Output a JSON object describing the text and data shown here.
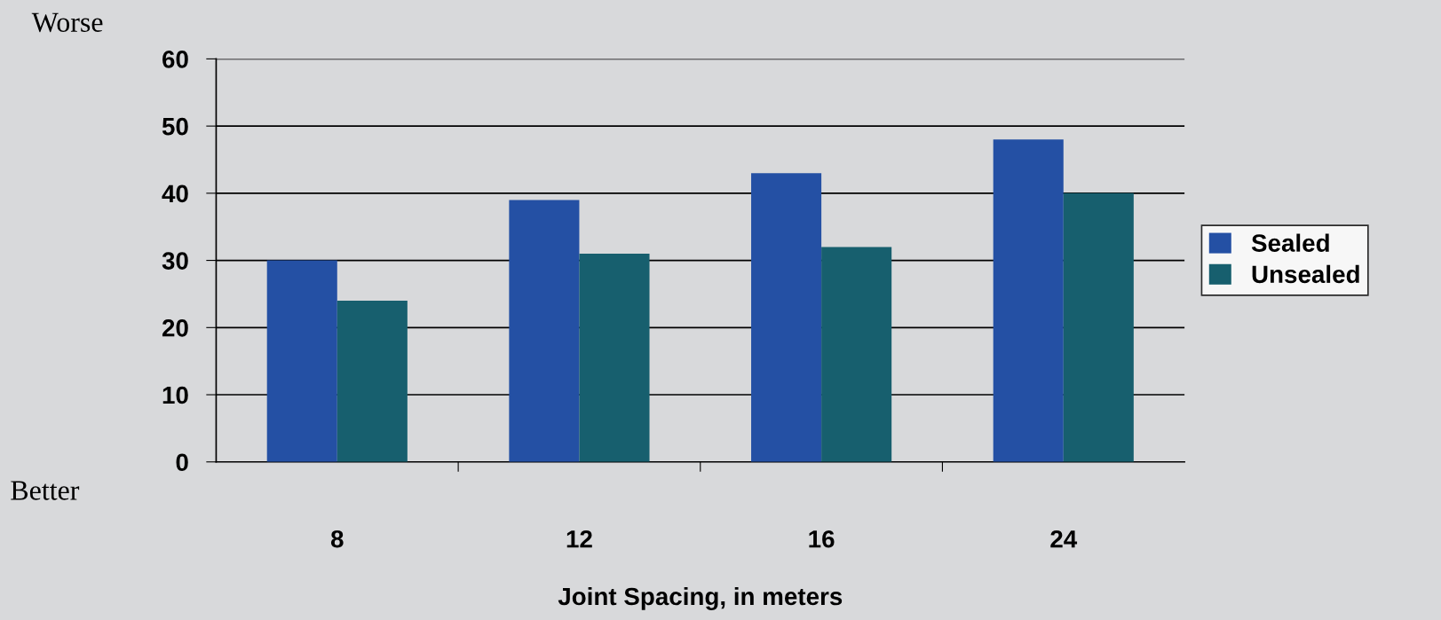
{
  "chart_data": {
    "type": "bar",
    "xlabel": "Joint Spacing, in meters",
    "categories": [
      "8",
      "12",
      "16",
      "24"
    ],
    "series": [
      {
        "name": "Sealed",
        "color": "#2450a4",
        "values": [
          30,
          39,
          43,
          48
        ]
      },
      {
        "name": "Unsealed",
        "color": "#175f6e",
        "values": [
          24,
          31,
          32,
          40
        ]
      }
    ],
    "ylim": [
      0,
      60
    ],
    "yticks": [
      0,
      10,
      20,
      30,
      40,
      50,
      60
    ],
    "grid": "y",
    "legend": "right",
    "annotations": [
      "Worse",
      "Better"
    ]
  }
}
